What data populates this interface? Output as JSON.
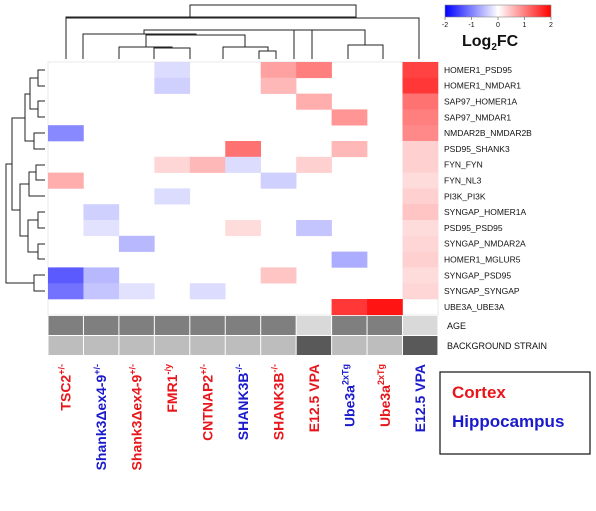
{
  "chart_data": {
    "type": "heatmap",
    "colorbar": {
      "title_base": "Log",
      "title_sub": "2",
      "title_rest": "FC",
      "ticks": [
        "-2",
        "-1",
        "0",
        "1",
        "2"
      ],
      "range": [
        -2,
        2
      ],
      "low_color": "#0000ff",
      "mid_color": "#ffffff",
      "high_color": "#ff0000"
    },
    "rows": [
      "HOMER1_PSD95",
      "HOMER1_NMDAR1",
      "SAP97_HOMER1A",
      "SAP97_NMDAR1",
      "NMDAR2B_NMDAR2B",
      "PSD95_SHANK3",
      "FYN_FYN",
      "FYN_NL3",
      "PI3K_PI3K",
      "SYNGAP_HOMER1A",
      "PSD95_PSD95",
      "SYNGAP_NMDAR2A",
      "HOMER1_MGLUR5",
      "SYNGAP_PSD95",
      "SYNGAP_SYNGAP",
      "UBE3A_UBE3A"
    ],
    "columns": [
      {
        "base": "TSC2",
        "sup": "+/-",
        "region": "Cortex"
      },
      {
        "base": "Shank3Δex4-9",
        "sup": "+/-",
        "region": "Hippocampus"
      },
      {
        "base": "Shank3Δex4-9",
        "sup": "+/-",
        "region": "Cortex"
      },
      {
        "base": "FMR1",
        "sup": "-/y",
        "region": "Cortex"
      },
      {
        "base": "CNTNAP2",
        "sup": "+/-",
        "region": "Cortex"
      },
      {
        "base": "SHANK3B",
        "sup": "-/-",
        "region": "Hippocampus"
      },
      {
        "base": "SHANK3B",
        "sup": "-/-",
        "region": "Cortex"
      },
      {
        "base": "E12.5 VPA",
        "sup": "",
        "region": "Cortex"
      },
      {
        "base": "Ube3a",
        "sup": "2xTg",
        "region": "Hippocampus"
      },
      {
        "base": "Ube3a",
        "sup": "2xTg",
        "region": "Cortex"
      },
      {
        "base": "E12.5 VPA",
        "sup": "",
        "region": "Hippocampus"
      }
    ],
    "values": [
      [
        0,
        0,
        0,
        -0.3,
        0,
        0,
        0.8,
        1.1,
        0,
        0,
        1.6
      ],
      [
        0,
        0,
        0,
        -0.4,
        0,
        0,
        0.6,
        0,
        0,
        0,
        1.7
      ],
      [
        0,
        0,
        0,
        0,
        0,
        0,
        0,
        0.7,
        0,
        0,
        1.2
      ],
      [
        0,
        0,
        0,
        0,
        0,
        0,
        0,
        0,
        0.9,
        0,
        1.1
      ],
      [
        -1.0,
        0,
        0,
        0,
        0,
        0,
        0,
        0,
        0,
        0,
        1.0
      ],
      [
        0,
        0,
        0,
        0,
        0,
        1.2,
        0,
        0,
        0.6,
        0,
        0.4
      ],
      [
        0,
        0,
        0,
        0.35,
        0.6,
        -0.3,
        0,
        0.4,
        0,
        0,
        0.4
      ],
      [
        0.7,
        0,
        0,
        0,
        0,
        0,
        -0.4,
        0,
        0,
        0,
        0.3
      ],
      [
        0,
        0,
        0,
        -0.3,
        0,
        0,
        0,
        0,
        0,
        0,
        0.4
      ],
      [
        0,
        -0.4,
        0,
        0,
        0,
        0,
        0,
        0,
        0,
        0,
        0.5
      ],
      [
        0,
        -0.25,
        0,
        0,
        0,
        0.3,
        0,
        -0.5,
        0,
        0,
        0.3
      ],
      [
        0,
        0,
        -0.6,
        0,
        0,
        0,
        0,
        0,
        0,
        0,
        0.35
      ],
      [
        0,
        0,
        0,
        0,
        0,
        0,
        0,
        0,
        -0.7,
        0,
        0.4
      ],
      [
        -1.4,
        -0.6,
        0,
        0,
        0,
        0,
        0.5,
        0,
        0,
        0,
        0.3
      ],
      [
        -1.2,
        -0.5,
        -0.25,
        0,
        -0.3,
        0,
        0,
        0,
        0,
        0,
        0.35
      ],
      [
        0,
        0,
        0,
        0,
        0,
        0,
        0,
        0,
        1.7,
        2.2,
        0
      ]
    ],
    "annotations": [
      {
        "label": "AGE",
        "levels": [
          2,
          2,
          2,
          2,
          2,
          2,
          2,
          0,
          2,
          2,
          0
        ]
      },
      {
        "label": "BACKGROUND STRAIN",
        "levels": [
          1,
          1,
          1,
          1,
          1,
          1,
          1,
          3,
          1,
          1,
          3
        ]
      }
    ],
    "annotation_colors": [
      "#d9d9d9",
      "#bdbdbd",
      "#7f7f7f",
      "#595959"
    ],
    "legend": [
      {
        "label": "Cortex",
        "color": "#e8161b"
      },
      {
        "label": "Hippocampus",
        "color": "#1a1acc"
      }
    ],
    "region_colors": {
      "Cortex": "#e8161b",
      "Hippocampus": "#1a1acc"
    }
  }
}
